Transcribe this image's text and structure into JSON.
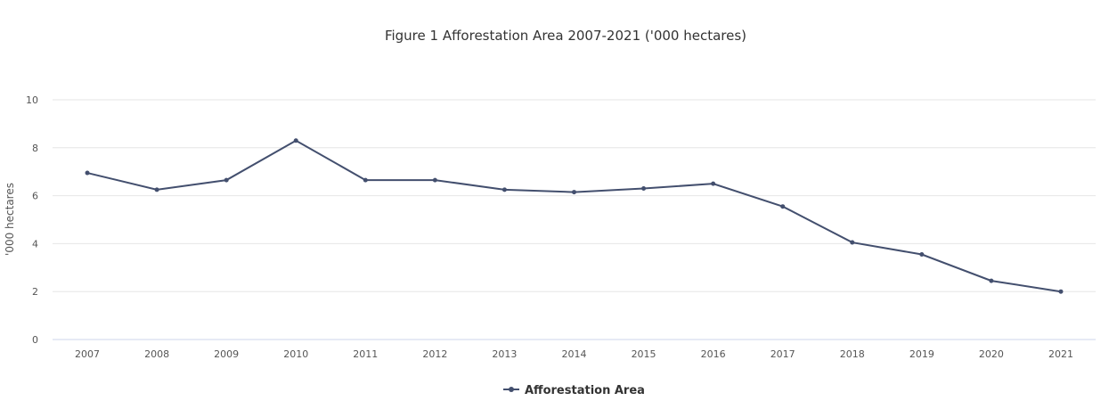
{
  "chart_data": {
    "type": "line",
    "title": "Figure 1 Afforestation Area 2007-2021 ('000 hectares)",
    "xlabel": "",
    "ylabel": "'000 hectares",
    "categories": [
      "2007",
      "2008",
      "2009",
      "2010",
      "2011",
      "2012",
      "2013",
      "2014",
      "2015",
      "2016",
      "2017",
      "2018",
      "2019",
      "2020",
      "2021"
    ],
    "series": [
      {
        "name": "Afforestation Area",
        "values": [
          6.95,
          6.25,
          6.65,
          8.3,
          6.65,
          6.65,
          6.25,
          6.15,
          6.3,
          6.5,
          5.55,
          4.05,
          3.55,
          2.45,
          2.0
        ]
      }
    ],
    "ylim": [
      0,
      10
    ],
    "yticks": [
      "0",
      "2",
      "4",
      "6",
      "8",
      "10"
    ],
    "grid": true,
    "legend_position": "bottom-center",
    "colors": {
      "series": "#434f6e",
      "grid": "#e6e6e6"
    }
  }
}
